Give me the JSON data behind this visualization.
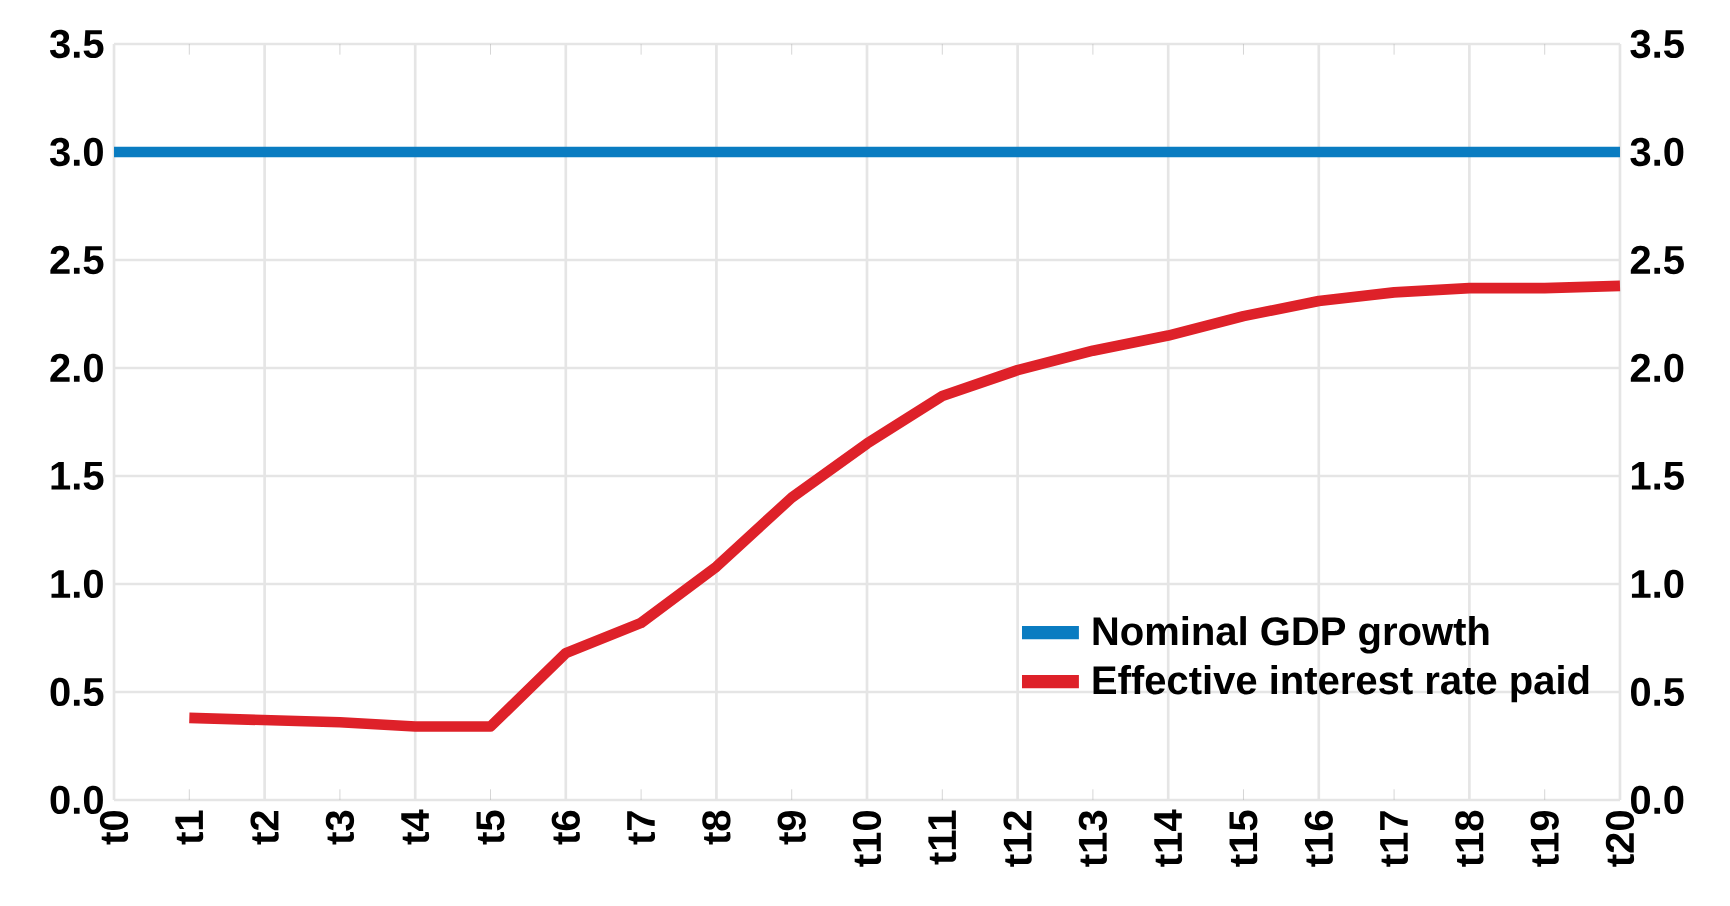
{
  "chart_data": {
    "type": "line",
    "categories": [
      "t0",
      "t1",
      "t2",
      "t3",
      "t4",
      "t5",
      "t6",
      "t7",
      "t8",
      "t9",
      "t10",
      "t11",
      "t12",
      "t13",
      "t14",
      "t15",
      "t16",
      "t17",
      "t18",
      "t19",
      "t20"
    ],
    "series": [
      {
        "name": "Nominal GDP growth",
        "color": "#0a7cc1",
        "values": [
          3.0,
          3.0,
          3.0,
          3.0,
          3.0,
          3.0,
          3.0,
          3.0,
          3.0,
          3.0,
          3.0,
          3.0,
          3.0,
          3.0,
          3.0,
          3.0,
          3.0,
          3.0,
          3.0,
          3.0,
          3.0
        ]
      },
      {
        "name": "Effective interest rate paid",
        "color": "#de2129",
        "values": [
          null,
          0.38,
          0.37,
          0.36,
          0.34,
          0.34,
          0.68,
          0.82,
          1.08,
          1.4,
          1.65,
          1.87,
          1.99,
          2.08,
          2.15,
          2.24,
          2.31,
          2.35,
          2.37,
          2.37,
          2.38
        ]
      }
    ],
    "ylim": [
      0,
      3.5
    ],
    "yticks": [
      {
        "value": 0,
        "label": "0.0"
      },
      0.5,
      {
        "value": 1,
        "label": "1.0"
      },
      1.5,
      {
        "value": 2,
        "label": "2.0"
      },
      2.5,
      {
        "value": 3,
        "label": "3.0"
      },
      3.5
    ],
    "y2lim": [
      0,
      3.5
    ],
    "y2ticks": [
      {
        "value": 0,
        "label": "0.0"
      },
      0.5,
      {
        "value": 1,
        "label": "1.0"
      },
      1.5,
      {
        "value": 2,
        "label": "2.0"
      },
      2.5,
      {
        "value": 3,
        "label": "3.0"
      },
      3.5
    ],
    "grid": true,
    "legend": "bottom right",
    "marker": "none",
    "line_style": "solid"
  }
}
